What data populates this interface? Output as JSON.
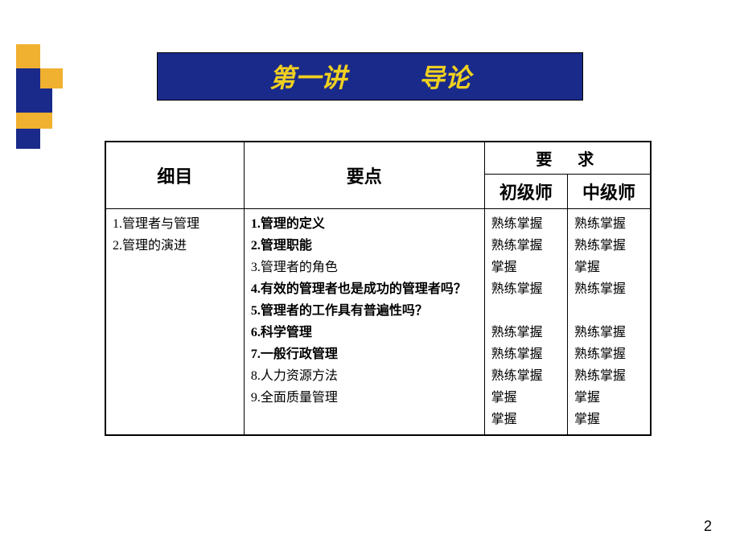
{
  "title": {
    "left": "第一讲",
    "right": "导论"
  },
  "headers": {
    "detail": "细目",
    "points": "要点",
    "requirement": "要　求",
    "junior": "初级师",
    "intermediate": "中级师"
  },
  "detail_items": [
    "1.管理者与管理",
    "2.管理的演进"
  ],
  "point_items": [
    {
      "text": "1.管理的定义",
      "bold": true
    },
    {
      "text": "2.管理职能",
      "bold": true
    },
    {
      "text": "3.管理者的角色",
      "bold": false
    },
    {
      "text": "4.有效的管理者也是成功的管理者吗？",
      "bold": true
    },
    {
      "text": "5.管理者的工作具有普遍性吗？",
      "bold": true
    },
    {
      "text": "6.科学管理",
      "bold": true
    },
    {
      "text": "7.一般行政管理",
      "bold": true
    },
    {
      "text": "8.人力资源方法",
      "bold": false
    },
    {
      "text": "9.全面质量管理",
      "bold": false
    }
  ],
  "junior_items": [
    "熟练掌握",
    "熟练掌握",
    "掌握",
    "熟练掌握",
    "",
    "熟练掌握",
    "熟练掌握",
    "熟练掌握",
    "掌握",
    "掌握"
  ],
  "intermediate_items": [
    "熟练掌握",
    "熟练掌握",
    "掌握",
    "熟练掌握",
    "",
    "熟练掌握",
    "熟练掌握",
    "熟练掌握",
    "掌握",
    "掌握"
  ],
  "page_number": "2",
  "colors": {
    "banner_bg": "#1a2a8a",
    "banner_text": "#f0d020",
    "deco_yellow": "#f0b030",
    "deco_navy": "#1a2a8a"
  }
}
